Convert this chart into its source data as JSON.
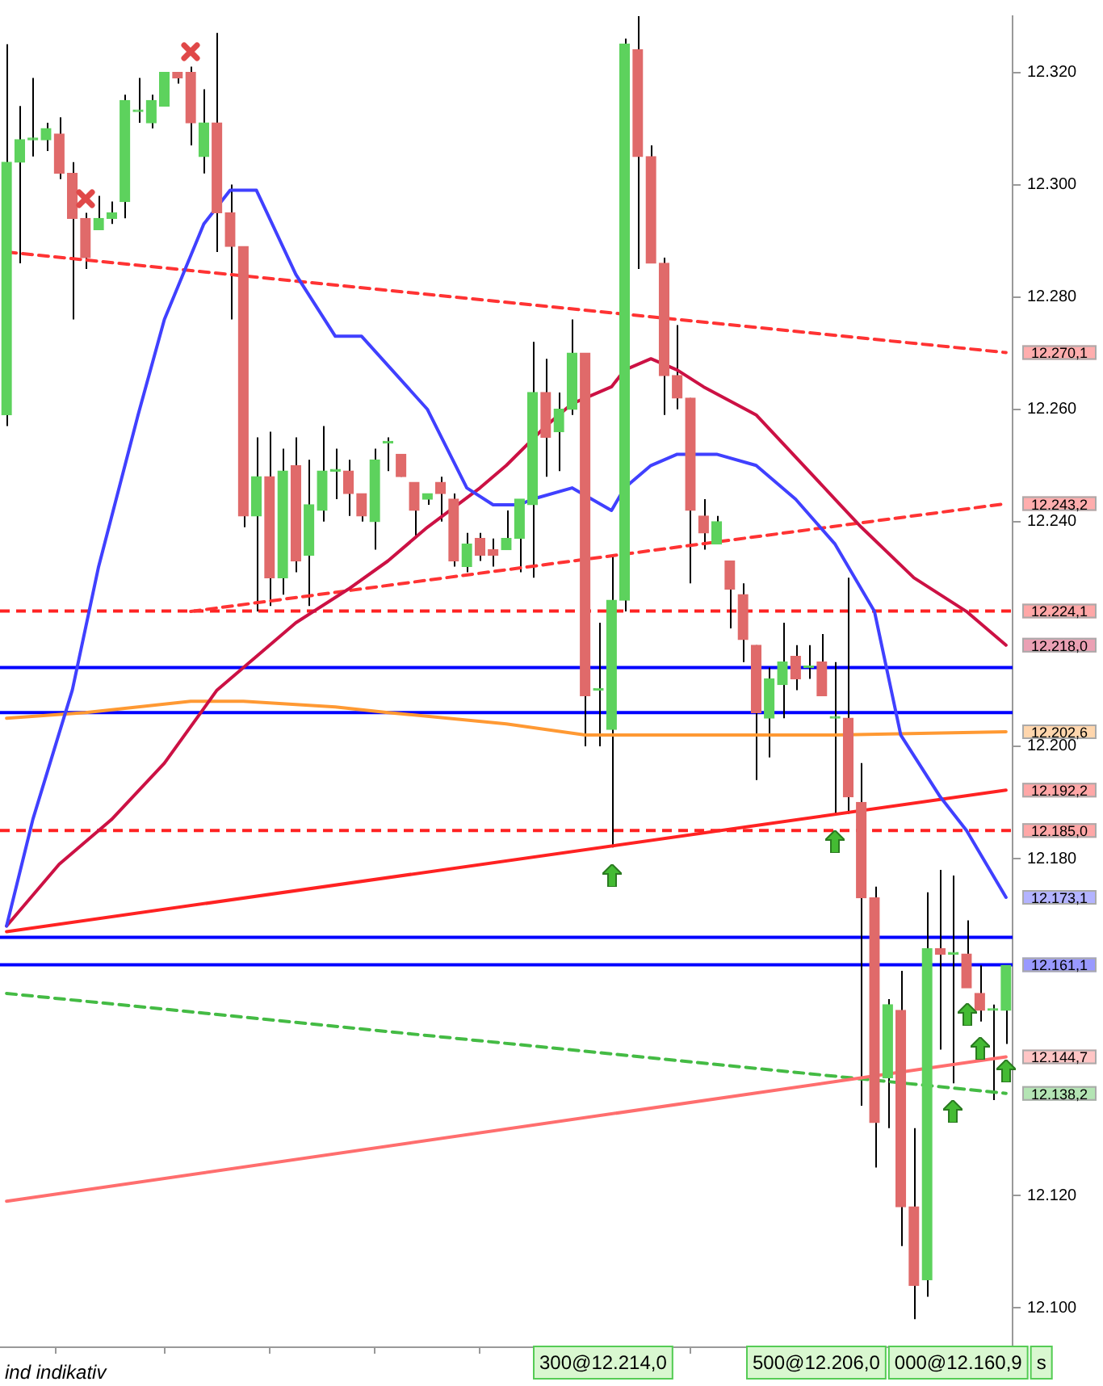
{
  "chart_data": {
    "type": "candlestick",
    "categories": [
      null,
      null,
      null,
      null,
      null,
      null,
      null,
      null,
      null,
      null,
      null,
      null,
      null,
      null,
      null,
      null,
      null,
      null,
      null,
      null,
      null,
      null,
      null,
      null,
      null,
      null,
      null,
      null,
      null,
      null,
      null,
      null,
      null,
      null,
      null,
      null,
      null,
      null,
      null,
      null,
      null,
      null,
      null,
      null,
      null,
      null,
      null,
      null,
      null,
      null,
      null,
      null,
      null,
      null,
      null,
      null,
      null,
      null,
      null,
      null,
      null,
      null,
      null,
      null,
      null,
      null,
      null,
      null,
      null,
      null,
      null,
      null,
      null,
      null,
      null,
      null,
      null
    ],
    "ohlc": [
      [
        12259,
        12325,
        12257,
        12304
      ],
      [
        12304,
        12314,
        12286,
        12308
      ],
      [
        12308,
        12319,
        12305,
        12308
      ],
      [
        12308,
        12311,
        12306,
        12310
      ],
      [
        12309,
        12312,
        12301,
        12302
      ],
      [
        12302,
        12304,
        12276,
        12294
      ],
      [
        12294,
        12295,
        12285,
        12287
      ],
      [
        12292,
        12298,
        12292,
        12294
      ],
      [
        12294,
        12297,
        12293,
        12295
      ],
      [
        12297,
        12316,
        12294,
        12315
      ],
      [
        12313,
        12319,
        12311,
        12313
      ],
      [
        12311,
        12316,
        12310,
        12315
      ],
      [
        12314,
        12320,
        12314,
        12320
      ],
      [
        12320,
        12320,
        12318,
        12319
      ],
      [
        12320,
        12321,
        12307,
        12311
      ],
      [
        12305,
        12317,
        12302,
        12311
      ],
      [
        12311,
        12327,
        12288,
        12295
      ],
      [
        12295,
        12300,
        12276,
        12289
      ],
      [
        12289,
        12289,
        12239,
        12241
      ],
      [
        12241,
        12255,
        12224,
        12248
      ],
      [
        12248,
        12256,
        12225,
        12230
      ],
      [
        12230,
        12253,
        12227,
        12249
      ],
      [
        12250,
        12255,
        12231,
        12233
      ],
      [
        12234,
        12251,
        12225,
        12243
      ],
      [
        12242,
        12257,
        12240,
        12249
      ],
      [
        12249,
        12253,
        12244,
        12249
      ],
      [
        12249,
        12251,
        12241,
        12245
      ],
      [
        12245,
        12245,
        12240,
        12241
      ],
      [
        12240,
        12253,
        12235,
        12251
      ],
      [
        12254,
        12255,
        12249,
        12254
      ],
      [
        12252,
        12252,
        12248,
        12248
      ],
      [
        12247,
        12247,
        12237,
        12242
      ],
      [
        12244,
        12245,
        12243,
        12245
      ],
      [
        12247,
        12248,
        12240,
        12245
      ],
      [
        12244,
        12245,
        12232,
        12233
      ],
      [
        12232,
        12238,
        12231,
        12236
      ],
      [
        12237,
        12238,
        12233,
        12234
      ],
      [
        12235,
        12237,
        12232,
        12234
      ],
      [
        12235,
        12242,
        12235,
        12237
      ],
      [
        12237,
        12244,
        12231,
        12244
      ],
      [
        12243,
        12272,
        12230,
        12263
      ],
      [
        12263,
        12269,
        12248,
        12255
      ],
      [
        12256,
        12263,
        12249,
        12260
      ],
      [
        12260,
        12276,
        12259,
        12270
      ],
      [
        12270,
        12270,
        12200,
        12209
      ],
      [
        12210,
        12222,
        12200,
        12210
      ],
      [
        12203,
        12234,
        12182,
        12226
      ],
      [
        12226,
        12326,
        12224,
        12325
      ],
      [
        12324,
        12330,
        12285,
        12305
      ],
      [
        12305,
        12307,
        12286,
        12286
      ],
      [
        12286,
        12287,
        12259,
        12266
      ],
      [
        12266,
        12275,
        12260,
        12262
      ],
      [
        12262,
        12262,
        12229,
        12242
      ],
      [
        12241,
        12244,
        12235,
        12238
      ],
      [
        12236,
        12241,
        12236,
        12240
      ],
      [
        12233,
        12233,
        12221,
        12228
      ],
      [
        12227,
        12229,
        12215,
        12219
      ],
      [
        12218,
        12218,
        12194,
        12206
      ],
      [
        12205,
        12214,
        12198,
        12212
      ],
      [
        12211,
        12222,
        12205,
        12215
      ],
      [
        12216,
        12218,
        12210,
        12212
      ],
      [
        12214,
        12218,
        12212,
        12214
      ],
      [
        12215,
        12220,
        12209,
        12209
      ],
      [
        12205,
        12215,
        12188,
        12205
      ],
      [
        12205,
        12230,
        12188,
        12191
      ],
      [
        12190,
        12197,
        12136,
        12173
      ],
      [
        12173,
        12175,
        12125,
        12133
      ],
      [
        12141,
        12155,
        12132,
        12154
      ],
      [
        12153,
        12160,
        12111,
        12118
      ],
      [
        12118,
        12132,
        12098,
        12104
      ],
      [
        12105,
        12174,
        12102,
        12164
      ],
      [
        12164,
        12178,
        12146,
        12163
      ],
      [
        12163,
        12177,
        12140,
        12163
      ],
      [
        12163,
        12169,
        12157,
        12157
      ],
      [
        12156,
        12161,
        12151,
        12153
      ],
      [
        12153,
        12154,
        12137,
        12153
      ],
      [
        12153,
        12161,
        12147,
        12161
      ]
    ],
    "colors": [
      "#5dd25d",
      "#5dd25d",
      "#5dd25d",
      "#5dd25d",
      "#e06a6a",
      "#e06a6a",
      "#e06a6a",
      "#5dd25d",
      "#5dd25d",
      "#5dd25d",
      "#5dd25d",
      "#5dd25d",
      "#5dd25d",
      "#e06a6a",
      "#e06a6a",
      "#5dd25d",
      "#e06a6a",
      "#e06a6a",
      "#e06a6a",
      "#5dd25d",
      "#e06a6a",
      "#5dd25d",
      "#e06a6a",
      "#5dd25d",
      "#5dd25d",
      "#5dd25d",
      "#e06a6a",
      "#e06a6a",
      "#5dd25d",
      "#5dd25d",
      "#e06a6a",
      "#e06a6a",
      "#5dd25d",
      "#e06a6a",
      "#e06a6a",
      "#5dd25d",
      "#e06a6a",
      "#e06a6a",
      "#5dd25d",
      "#5dd25d",
      "#5dd25d",
      "#e06a6a",
      "#5dd25d",
      "#5dd25d",
      "#e06a6a",
      "#5dd25d",
      "#5dd25d",
      "#5dd25d",
      "#e06a6a",
      "#e06a6a",
      "#e06a6a",
      "#e06a6a",
      "#e06a6a",
      "#e06a6a",
      "#5dd25d",
      "#e06a6a",
      "#e06a6a",
      "#e06a6a",
      "#5dd25d",
      "#5dd25d",
      "#e06a6a",
      "#5dd25d",
      "#e06a6a",
      "#5dd25d",
      "#e06a6a",
      "#e06a6a",
      "#e06a6a",
      "#5dd25d",
      "#e06a6a",
      "#e06a6a",
      "#5dd25d",
      "#e06a6a",
      "#5dd25d",
      "#e06a6a",
      "#e06a6a",
      "#5dd25d",
      "#5dd25d"
    ],
    "series": [
      {
        "type": "line",
        "color": "#4040ff",
        "values": [
          12168,
          null,
          12187,
          null,
          null,
          12210,
          null,
          12232,
          null,
          null,
          12259,
          null,
          12276,
          null,
          null,
          12293,
          null,
          12299,
          null,
          12299,
          null,
          null,
          12284,
          null,
          null,
          12273,
          null,
          12273,
          null,
          null,
          null,
          null,
          12260,
          null,
          null,
          12246,
          null,
          12243,
          null,
          12243,
          12244,
          null,
          null,
          12246,
          null,
          null,
          12242,
          12246,
          null,
          12250,
          null,
          12252,
          null,
          null,
          12252,
          null,
          null,
          12250,
          null,
          null,
          12244,
          null,
          null,
          12236,
          null,
          null,
          12224,
          null,
          12202,
          null,
          null,
          12191,
          null,
          12185,
          null,
          null,
          12173.1
        ],
        "value_labels": [
          null,
          null,
          null,
          null,
          null,
          null,
          null,
          null,
          null,
          null,
          null,
          null,
          null,
          null,
          null,
          null,
          null,
          null,
          null,
          null,
          null,
          null,
          null,
          null,
          null,
          null,
          null,
          null,
          null,
          null,
          null,
          null,
          null,
          null,
          null,
          null,
          null,
          null,
          null,
          null,
          null,
          null,
          null,
          null,
          null,
          null,
          null,
          null,
          null,
          null,
          null,
          null,
          null,
          null,
          null,
          null,
          null,
          null,
          null,
          null,
          null,
          null,
          null,
          null,
          null,
          null,
          null,
          null,
          null,
          null,
          null,
          null,
          null,
          null,
          null,
          null,
          "12.173,1"
        ]
      },
      {
        "type": "line",
        "color": "#cc1144",
        "values": [
          12168,
          null,
          null,
          null,
          12179,
          null,
          null,
          null,
          12187,
          null,
          null,
          null,
          12197,
          null,
          null,
          null,
          12210,
          null,
          null,
          12216,
          null,
          null,
          12222,
          null,
          null,
          null,
          12228,
          null,
          null,
          12233,
          null,
          null,
          12239,
          null,
          null,
          null,
          12246,
          null,
          12250,
          null,
          null,
          12257,
          null,
          12261,
          null,
          null,
          12264,
          12267,
          null,
          12269,
          null,
          12267,
          null,
          12264,
          null,
          null,
          null,
          12259,
          null,
          null,
          null,
          null,
          null,
          12244,
          null,
          12239,
          null,
          null,
          null,
          12230,
          null,
          null,
          null,
          12224,
          null,
          null,
          12218
        ],
        "value_labels": [
          null,
          null,
          null,
          null,
          null,
          null,
          null,
          null,
          null,
          null,
          null,
          null,
          null,
          null,
          null,
          null,
          null,
          null,
          null,
          null,
          null,
          null,
          null,
          null,
          null,
          null,
          null,
          null,
          null,
          null,
          null,
          null,
          null,
          null,
          null,
          null,
          null,
          null,
          null,
          null,
          null,
          null,
          null,
          null,
          null,
          null,
          null,
          null,
          null,
          null,
          null,
          null,
          null,
          null,
          null,
          null,
          null,
          null,
          null,
          null,
          null,
          null,
          null,
          null,
          null,
          null,
          null,
          null,
          null,
          null,
          null,
          null,
          null,
          null,
          null,
          null,
          "12.218,0"
        ]
      },
      {
        "type": "line",
        "color": "#ff9933",
        "values": [
          12205,
          null,
          null,
          null,
          null,
          null,
          12206,
          null,
          null,
          null,
          null,
          null,
          null,
          null,
          12208,
          null,
          null,
          null,
          12208,
          null,
          null,
          null,
          null,
          null,
          null,
          12207,
          null,
          null,
          null,
          12206,
          null,
          null,
          null,
          null,
          null,
          null,
          null,
          null,
          12204,
          null,
          null,
          null,
          null,
          null,
          12202,
          null,
          null,
          null,
          null,
          null,
          null,
          null,
          null,
          12202,
          null,
          null,
          null,
          null,
          null,
          null,
          null,
          null,
          null,
          12202,
          null,
          null,
          null,
          null,
          null,
          null,
          null,
          null,
          null,
          null,
          null,
          null,
          12202.6
        ],
        "value_labels": [
          null,
          null,
          null,
          null,
          null,
          null,
          null,
          null,
          null,
          null,
          null,
          null,
          null,
          null,
          null,
          null,
          null,
          null,
          null,
          null,
          null,
          null,
          null,
          null,
          null,
          null,
          null,
          null,
          null,
          null,
          null,
          null,
          null,
          null,
          null,
          null,
          null,
          null,
          null,
          null,
          null,
          null,
          null,
          null,
          null,
          null,
          null,
          null,
          null,
          null,
          null,
          null,
          null,
          null,
          null,
          null,
          null,
          null,
          null,
          null,
          null,
          null,
          null,
          null,
          null,
          null,
          null,
          null,
          null,
          null,
          null,
          null,
          null,
          null,
          null,
          null,
          "12.202,6"
        ]
      },
      {
        "type": "line",
        "color": "#ff3333",
        "line_style": "dashed",
        "values": [
          12288,
          null,
          null,
          null,
          null,
          null,
          null,
          null,
          null,
          null,
          null,
          null,
          null,
          null,
          null,
          null,
          null,
          null,
          null,
          null,
          null,
          null,
          null,
          null,
          null,
          null,
          null,
          null,
          null,
          null,
          null,
          null,
          null,
          null,
          null,
          null,
          null,
          null,
          null,
          null,
          null,
          null,
          null,
          null,
          null,
          null,
          null,
          null,
          null,
          null,
          null,
          null,
          null,
          null,
          null,
          null,
          null,
          null,
          null,
          null,
          null,
          null,
          null,
          null,
          null,
          null,
          null,
          null,
          null,
          null,
          null,
          null,
          null,
          null,
          null,
          null,
          12270.1
        ],
        "value_labels": [
          null,
          null,
          null,
          null,
          null,
          null,
          null,
          null,
          null,
          null,
          null,
          null,
          null,
          null,
          null,
          null,
          null,
          null,
          null,
          null,
          null,
          null,
          null,
          null,
          null,
          null,
          null,
          null,
          null,
          null,
          null,
          null,
          null,
          null,
          null,
          null,
          null,
          null,
          null,
          null,
          null,
          null,
          null,
          null,
          null,
          null,
          null,
          null,
          null,
          null,
          null,
          null,
          null,
          null,
          null,
          null,
          null,
          null,
          null,
          null,
          null,
          null,
          null,
          null,
          null,
          null,
          null,
          null,
          null,
          null,
          null,
          null,
          null,
          null,
          null,
          null,
          "12.270,1"
        ]
      },
      {
        "type": "line",
        "color": "#ff3333",
        "line_style": "dashed",
        "values": [
          null,
          null,
          null,
          null,
          null,
          null,
          null,
          null,
          null,
          null,
          null,
          null,
          null,
          null,
          12224,
          null,
          null,
          null,
          null,
          null,
          null,
          null,
          null,
          null,
          null,
          null,
          null,
          null,
          null,
          null,
          null,
          null,
          null,
          null,
          null,
          null,
          null,
          null,
          null,
          null,
          null,
          null,
          null,
          null,
          null,
          null,
          null,
          null,
          null,
          null,
          null,
          null,
          null,
          null,
          null,
          null,
          null,
          null,
          null,
          null,
          null,
          null,
          null,
          null,
          null,
          null,
          null,
          null,
          null,
          null,
          null,
          null,
          null,
          null,
          null,
          null,
          12243.2
        ],
        "value_labels": [
          null,
          null,
          null,
          null,
          null,
          null,
          null,
          null,
          null,
          null,
          null,
          null,
          null,
          null,
          null,
          null,
          null,
          null,
          null,
          null,
          null,
          null,
          null,
          null,
          null,
          null,
          null,
          null,
          null,
          null,
          null,
          null,
          null,
          null,
          null,
          null,
          null,
          null,
          null,
          null,
          null,
          null,
          null,
          null,
          null,
          null,
          null,
          null,
          null,
          null,
          null,
          null,
          null,
          null,
          null,
          null,
          null,
          null,
          null,
          null,
          null,
          null,
          null,
          null,
          null,
          null,
          null,
          null,
          null,
          null,
          null,
          null,
          null,
          null,
          null,
          null,
          "12.243,2"
        ]
      },
      {
        "type": "line",
        "color": "#ff2222",
        "values": [
          12167,
          null,
          null,
          null,
          null,
          null,
          null,
          null,
          null,
          null,
          null,
          null,
          null,
          null,
          null,
          null,
          null,
          null,
          null,
          null,
          null,
          null,
          null,
          null,
          null,
          null,
          null,
          null,
          null,
          null,
          null,
          null,
          null,
          null,
          null,
          null,
          null,
          null,
          null,
          null,
          null,
          null,
          null,
          null,
          null,
          null,
          null,
          null,
          null,
          null,
          null,
          null,
          null,
          null,
          null,
          null,
          null,
          null,
          null,
          null,
          null,
          null,
          null,
          null,
          null,
          null,
          null,
          null,
          null,
          null,
          null,
          null,
          null,
          null,
          null,
          null,
          12192.2
        ],
        "value_labels": [
          null,
          null,
          null,
          null,
          null,
          null,
          null,
          null,
          null,
          null,
          null,
          null,
          null,
          null,
          null,
          null,
          null,
          null,
          null,
          null,
          null,
          null,
          null,
          null,
          null,
          null,
          null,
          null,
          null,
          null,
          null,
          null,
          null,
          null,
          null,
          null,
          null,
          null,
          null,
          null,
          null,
          null,
          null,
          null,
          null,
          null,
          null,
          null,
          null,
          null,
          null,
          null,
          null,
          null,
          null,
          null,
          null,
          null,
          null,
          null,
          null,
          null,
          null,
          null,
          null,
          null,
          null,
          null,
          null,
          null,
          null,
          null,
          null,
          null,
          null,
          null,
          "12.192,2"
        ]
      },
      {
        "type": "line",
        "color": "#ff6e6e",
        "values": [
          12119,
          null,
          null,
          null,
          null,
          null,
          null,
          null,
          null,
          null,
          null,
          null,
          null,
          null,
          null,
          null,
          null,
          null,
          null,
          null,
          null,
          null,
          null,
          null,
          null,
          null,
          null,
          null,
          null,
          null,
          null,
          null,
          null,
          null,
          null,
          null,
          null,
          null,
          null,
          null,
          null,
          null,
          null,
          null,
          null,
          null,
          null,
          null,
          null,
          null,
          null,
          null,
          null,
          null,
          null,
          null,
          null,
          null,
          null,
          null,
          null,
          null,
          null,
          null,
          null,
          null,
          null,
          null,
          null,
          null,
          null,
          null,
          null,
          null,
          null,
          null,
          12144.7
        ],
        "value_labels": [
          null,
          null,
          null,
          null,
          null,
          null,
          null,
          null,
          null,
          null,
          null,
          null,
          null,
          null,
          null,
          null,
          null,
          null,
          null,
          null,
          null,
          null,
          null,
          null,
          null,
          null,
          null,
          null,
          null,
          null,
          null,
          null,
          null,
          null,
          null,
          null,
          null,
          null,
          null,
          null,
          null,
          null,
          null,
          null,
          null,
          null,
          null,
          null,
          null,
          null,
          null,
          null,
          null,
          null,
          null,
          null,
          null,
          null,
          null,
          null,
          null,
          null,
          null,
          null,
          null,
          null,
          null,
          null,
          null,
          null,
          null,
          null,
          null,
          null,
          null,
          null,
          "12.144,7"
        ]
      },
      {
        "type": "line",
        "color": "#44bb44",
        "line_style": "dashed",
        "values": [
          12156,
          null,
          null,
          null,
          null,
          null,
          null,
          null,
          null,
          null,
          null,
          null,
          null,
          null,
          null,
          null,
          null,
          null,
          null,
          null,
          null,
          null,
          null,
          null,
          null,
          null,
          null,
          null,
          null,
          null,
          null,
          null,
          null,
          null,
          null,
          null,
          null,
          null,
          null,
          null,
          null,
          null,
          null,
          null,
          null,
          null,
          null,
          null,
          null,
          null,
          null,
          null,
          null,
          null,
          null,
          null,
          null,
          null,
          null,
          null,
          null,
          null,
          null,
          null,
          null,
          null,
          null,
          null,
          null,
          null,
          null,
          null,
          null,
          null,
          null,
          null,
          12138.2
        ],
        "value_labels": [
          null,
          null,
          null,
          null,
          null,
          null,
          null,
          null,
          null,
          null,
          null,
          null,
          null,
          null,
          null,
          null,
          null,
          null,
          null,
          null,
          null,
          null,
          null,
          null,
          null,
          null,
          null,
          null,
          null,
          null,
          null,
          null,
          null,
          null,
          null,
          null,
          null,
          null,
          null,
          null,
          null,
          null,
          null,
          null,
          null,
          null,
          null,
          null,
          null,
          null,
          null,
          null,
          null,
          null,
          null,
          null,
          null,
          null,
          null,
          null,
          null,
          null,
          null,
          null,
          null,
          null,
          null,
          null,
          null,
          null,
          null,
          null,
          null,
          null,
          null,
          null,
          "12.138,2"
        ]
      }
    ],
    "ylim": [
      12093,
      12330
    ],
    "yticks": [
      {
        "value": 12100,
        "label": "12.100"
      },
      {
        "value": 12120,
        "label": "12.120"
      },
      {
        "value": 12180,
        "label": "12.180"
      },
      {
        "value": 12200,
        "label": "12.200"
      },
      {
        "value": 12240,
        "label": "12.240"
      },
      {
        "value": 12260,
        "label": "12.260"
      },
      {
        "value": 12280,
        "label": "12.280"
      },
      {
        "value": 12300,
        "label": "12.300"
      },
      {
        "value": 12320,
        "label": "12.320"
      }
    ],
    "tick_labels": "y",
    "ref_lines": [
      {
        "axis": "y",
        "value": 12224.1,
        "label": "12.224,1",
        "color": "#ff2222",
        "line_style": "dashed"
      },
      {
        "axis": "y",
        "value": 12185.0,
        "label": "12.185,0",
        "color": "#ff2222",
        "line_style": "dashed"
      },
      {
        "axis": "y",
        "value": 12161.1,
        "label": "12.161,1",
        "color": "#0000ff"
      },
      {
        "axis": "y",
        "value": 12214.0,
        "color": "#0000ff"
      },
      {
        "axis": "y",
        "value": 12206.0,
        "color": "#0000ff"
      },
      {
        "axis": "y",
        "value": 12166,
        "color": "#0000ff"
      }
    ],
    "annotations": [
      "ind indikativ",
      "300@12.214,0",
      "500@12.206,0",
      "000@12.160,9",
      "s"
    ]
  }
}
